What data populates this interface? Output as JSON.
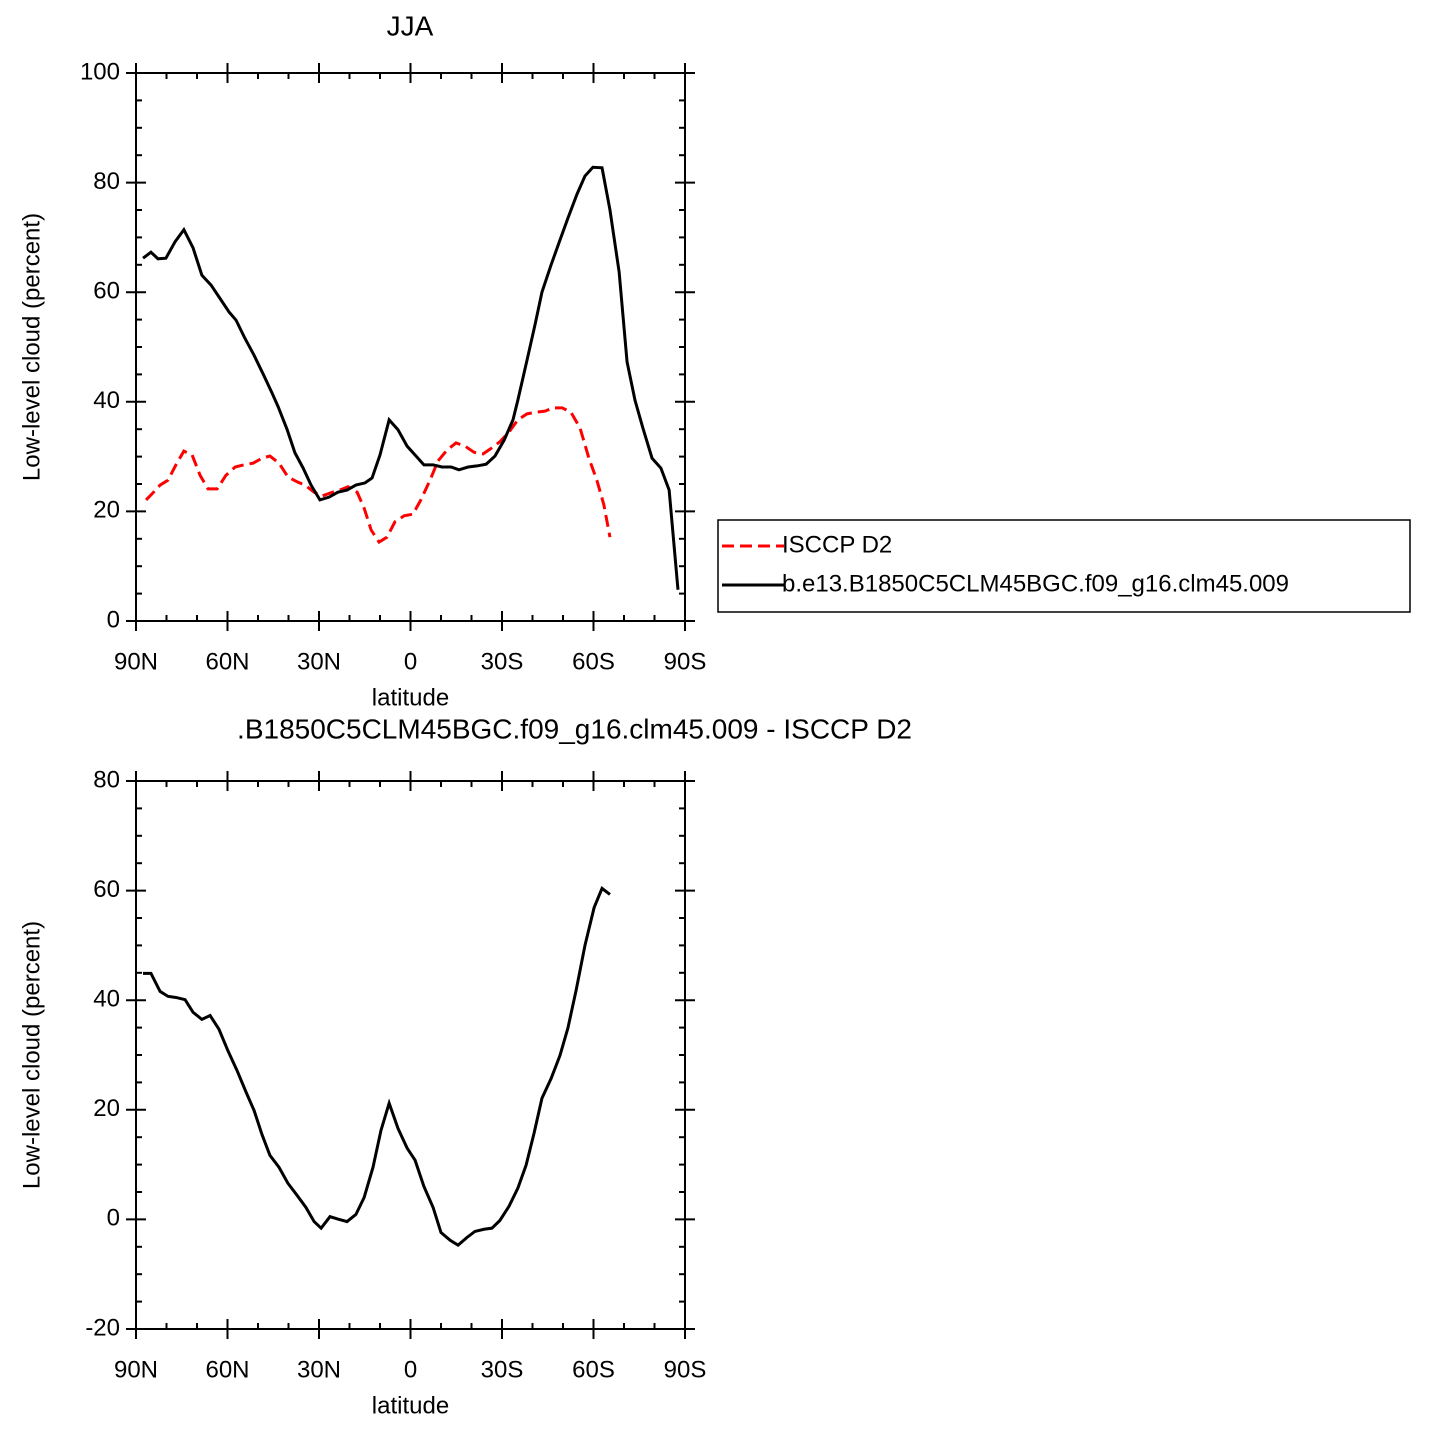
{
  "chart_data": [
    {
      "type": "line",
      "title": "JJA",
      "xlabel": "latitude",
      "ylabel": "Low-level cloud (percent)",
      "xlim": [
        90,
        -90
      ],
      "xticks": [
        {
          "value": 90,
          "label": "90N"
        },
        {
          "value": 60,
          "label": "60N"
        },
        {
          "value": 30,
          "label": "30N"
        },
        0,
        {
          "value": -30,
          "label": "30S"
        },
        {
          "value": -60,
          "label": "60S"
        },
        {
          "value": -90,
          "label": "90S"
        }
      ],
      "ylim": [
        0,
        100
      ],
      "yticks": [
        0,
        20,
        40,
        60,
        80,
        100
      ],
      "legend": "right",
      "series": [
        {
          "name": "ISCCP D2",
          "color": "#ff0000",
          "linestyle": "dashed",
          "x": [
            86.7,
            84.4,
            82.1,
            79.5,
            76.9,
            74.3,
            71.6,
            69.0,
            66.4,
            63.4,
            60.5,
            57.5,
            54.6,
            51.6,
            48.7,
            46.1,
            43.1,
            40.2,
            37.2,
            34.6,
            31.6,
            29.0,
            26.1,
            23.1,
            20.5,
            17.5,
            15.2,
            12.9,
            10.3,
            7.7,
            5.1,
            2.1,
            -0.8,
            -3.4,
            -6.4,
            -9.0,
            -12.0,
            -14.9,
            -17.9,
            -20.8,
            -23.8,
            -26.7,
            -29.3,
            -32.3,
            -35.2,
            -38.2,
            -41.1,
            -44.1,
            -46.7,
            -49.7,
            -52.6,
            -55.6,
            -58.5,
            -61.1,
            -63.4,
            -65.4
          ],
          "values": [
            22.1,
            23.4,
            24.8,
            25.7,
            28.5,
            31.0,
            30.3,
            26.6,
            24.1,
            24.1,
            26.6,
            28.1,
            28.5,
            28.8,
            29.7,
            30.1,
            28.8,
            26.3,
            25.4,
            24.8,
            23.5,
            22.8,
            23.4,
            23.9,
            24.5,
            23.5,
            20.6,
            16.6,
            14.4,
            15.3,
            18.1,
            19.2,
            19.5,
            22.1,
            25.7,
            29.2,
            31.2,
            32.5,
            31.9,
            30.8,
            30.5,
            31.6,
            32.7,
            34.5,
            36.7,
            37.8,
            38.1,
            38.3,
            38.9,
            38.9,
            38.1,
            35.2,
            29.7,
            25.7,
            21.2,
            15.3
          ]
        },
        {
          "name": "b.e13.B1850C5CLM45BGC.f09_g16.clm45.009",
          "color": "#000000",
          "linestyle": "solid",
          "x": [
            87.7,
            85.1,
            82.8,
            80.2,
            77.2,
            74.3,
            71.3,
            68.4,
            65.4,
            62.5,
            59.5,
            57.2,
            54.3,
            51.3,
            48.0,
            45.4,
            43.4,
            40.5,
            37.9,
            35.2,
            32.6,
            29.7,
            26.7,
            23.8,
            20.8,
            17.9,
            14.9,
            12.6,
            10.0,
            7.0,
            4.1,
            1.1,
            -1.5,
            -4.4,
            -7.4,
            -10.3,
            -13.3,
            -15.9,
            -18.9,
            -21.8,
            -24.8,
            -27.7,
            -30.7,
            -33.6,
            -35.2,
            -38.2,
            -40.8,
            -43.1,
            -46.1,
            -49.0,
            -51.6,
            -54.6,
            -57.2,
            -59.8,
            -62.8,
            -65.4,
            -68.4,
            -71.0,
            -73.6,
            -76.2,
            -79.2,
            -82.1,
            -84.8,
            -87.7
          ],
          "values": [
            66.2,
            67.3,
            66.1,
            66.2,
            69.2,
            71.4,
            68.1,
            63.1,
            61.3,
            58.9,
            56.4,
            54.9,
            51.6,
            48.5,
            44.7,
            41.6,
            39.1,
            35.0,
            30.7,
            27.9,
            24.8,
            22.1,
            22.6,
            23.5,
            23.9,
            24.8,
            25.2,
            26.1,
            30.3,
            36.7,
            34.9,
            31.9,
            30.3,
            28.5,
            28.5,
            28.1,
            28.1,
            27.6,
            28.1,
            28.3,
            28.6,
            30.1,
            33.0,
            36.7,
            40.3,
            47.6,
            54.0,
            60.0,
            65.0,
            69.5,
            73.5,
            77.9,
            81.2,
            82.8,
            82.7,
            75.0,
            63.7,
            47.3,
            40.3,
            35.2,
            29.7,
            27.9,
            23.9,
            5.7
          ]
        }
      ]
    },
    {
      "type": "line",
      "title": ".B1850C5CLM45BGC.f09_g16.clm45.009 - ISCCP D2",
      "xlabel": "latitude",
      "ylabel": "Low-level cloud (percent)",
      "xlim": [
        90,
        -90
      ],
      "xticks": [
        {
          "value": 90,
          "label": "90N"
        },
        {
          "value": 60,
          "label": "60N"
        },
        {
          "value": 30,
          "label": "30N"
        },
        0,
        {
          "value": -30,
          "label": "30S"
        },
        {
          "value": -60,
          "label": "60S"
        },
        {
          "value": -90,
          "label": "90S"
        }
      ],
      "ylim": [
        -20,
        80
      ],
      "yticks": [
        -20,
        0,
        20,
        40,
        60,
        80
      ],
      "series": [
        {
          "color": "#000000",
          "linestyle": "solid",
          "x": [
            87.7,
            85.1,
            82.1,
            79.5,
            76.9,
            73.9,
            71.3,
            68.4,
            65.7,
            62.8,
            59.8,
            56.9,
            53.9,
            51.3,
            48.7,
            46.1,
            43.1,
            40.2,
            37.2,
            34.3,
            31.6,
            29.3,
            26.4,
            23.4,
            20.8,
            17.9,
            15.2,
            12.3,
            9.7,
            7.0,
            4.1,
            1.1,
            -1.5,
            -4.4,
            -7.4,
            -10.0,
            -13.0,
            -15.6,
            -18.5,
            -21.1,
            -24.1,
            -26.7,
            -29.3,
            -32.3,
            -35.2,
            -37.9,
            -40.5,
            -43.1,
            -46.1,
            -49.0,
            -51.6,
            -54.3,
            -57.2,
            -60.2,
            -62.8,
            -65.4
          ],
          "values": [
            44.9,
            44.9,
            41.6,
            40.7,
            40.5,
            40.1,
            37.8,
            36.5,
            37.2,
            34.7,
            30.7,
            27.2,
            23.2,
            19.9,
            15.5,
            11.7,
            9.5,
            6.6,
            4.4,
            2.2,
            -0.4,
            -1.6,
            0.5,
            0.0,
            -0.4,
            0.9,
            4.0,
            9.5,
            16.2,
            21.2,
            16.6,
            13.0,
            10.8,
            6.0,
            2.2,
            -2.4,
            -3.8,
            -4.7,
            -3.3,
            -2.2,
            -1.8,
            -1.6,
            -0.2,
            2.4,
            5.7,
            9.9,
            15.7,
            22.1,
            25.7,
            29.9,
            34.9,
            41.8,
            50.0,
            56.9,
            60.4,
            59.3
          ]
        }
      ]
    }
  ]
}
